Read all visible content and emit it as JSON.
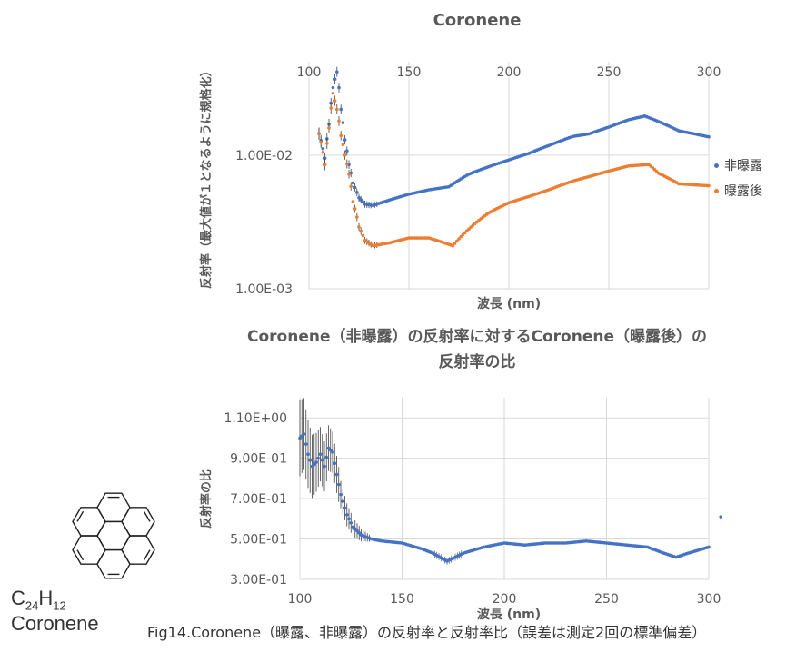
{
  "caption": "Fig14.Coronene（曝露、非曝露）の反射率と反射率比（誤差は測定2回の標準偏差）",
  "molecule": {
    "formula_main": "C",
    "formula_sub1": "24",
    "formula_mid": "H",
    "formula_sub2": "12",
    "name": "Coronene"
  },
  "colors": {
    "series1": "#4472C4",
    "series2": "#ED7D31",
    "grid": "#D9D9D9",
    "errbar": "#404040"
  },
  "chart_data": [
    {
      "type": "scatter",
      "title": "Coronene",
      "xlabel": "波長 (nm)",
      "ylabel": "反射率（最大値が１となるように規格化）",
      "xlim": [
        100,
        300
      ],
      "x_ticks": [
        "100",
        "150",
        "200",
        "250",
        "300"
      ],
      "y_scale": "log",
      "ylim": [
        0.001,
        0.05
      ],
      "y_ticks": [
        "1.00E-02",
        "1.00E-03"
      ],
      "legend_position": "right",
      "series": [
        {
          "name": "非曝露",
          "x": [
            105,
            108,
            110,
            112,
            114,
            116,
            118,
            120,
            122,
            125,
            128,
            132,
            140,
            150,
            160,
            170,
            180,
            190,
            200,
            210,
            220,
            232,
            240,
            250,
            260,
            268,
            275,
            285,
            300
          ],
          "y": [
            0.0145,
            0.0095,
            0.017,
            0.032,
            0.042,
            0.022,
            0.013,
            0.0085,
            0.0062,
            0.0048,
            0.0043,
            0.0042,
            0.0046,
            0.0051,
            0.0055,
            0.0058,
            0.0072,
            0.0082,
            0.0092,
            0.0103,
            0.0118,
            0.0138,
            0.0144,
            0.0162,
            0.0184,
            0.0196,
            0.0178,
            0.0152,
            0.0137
          ]
        },
        {
          "name": "曝露後",
          "x": [
            105,
            108,
            110,
            112,
            114,
            116,
            118,
            120,
            122,
            125,
            128,
            132,
            140,
            150,
            160,
            172,
            180,
            190,
            200,
            210,
            220,
            232,
            240,
            250,
            260,
            270,
            275,
            285,
            300
          ],
          "y": [
            0.0145,
            0.0085,
            0.016,
            0.029,
            0.022,
            0.014,
            0.01,
            0.0072,
            0.0045,
            0.0029,
            0.0023,
            0.0021,
            0.0022,
            0.0024,
            0.0024,
            0.0021,
            0.0028,
            0.0037,
            0.0044,
            0.0049,
            0.0055,
            0.0064,
            0.0069,
            0.0076,
            0.0083,
            0.0085,
            0.0073,
            0.0061,
            0.0059
          ]
        }
      ]
    },
    {
      "type": "scatter",
      "title": "Coronene（非曝露）の反射率に対するCoronene（曝露後）の反射率の比",
      "xlabel": "波長 (nm)",
      "ylabel": "反射率の比",
      "xlim": [
        100,
        300
      ],
      "x_ticks": [
        "100",
        "150",
        "200",
        "250",
        "300"
      ],
      "ylim": [
        0.3,
        1.2
      ],
      "y_ticks": [
        "1.10E+00",
        "9.00E-01",
        "7.00E-01",
        "5.00E-01",
        "3.00E-01"
      ],
      "series": [
        {
          "x": [
            100,
            102,
            104,
            106,
            108,
            110,
            112,
            114,
            116,
            118,
            120,
            123,
            126,
            130,
            135,
            140,
            150,
            160,
            165,
            172,
            180,
            190,
            200,
            210,
            220,
            230,
            240,
            250,
            260,
            270,
            278,
            284,
            290,
            300,
            305
          ],
          "y": [
            1.0,
            1.02,
            0.92,
            0.86,
            0.88,
            0.92,
            0.86,
            0.95,
            0.93,
            0.82,
            0.72,
            0.62,
            0.56,
            0.52,
            0.5,
            0.49,
            0.48,
            0.45,
            0.43,
            0.39,
            0.43,
            0.46,
            0.48,
            0.47,
            0.48,
            0.48,
            0.49,
            0.48,
            0.47,
            0.46,
            0.43,
            0.41,
            0.43,
            0.46,
            0.61
          ]
        }
      ]
    }
  ]
}
